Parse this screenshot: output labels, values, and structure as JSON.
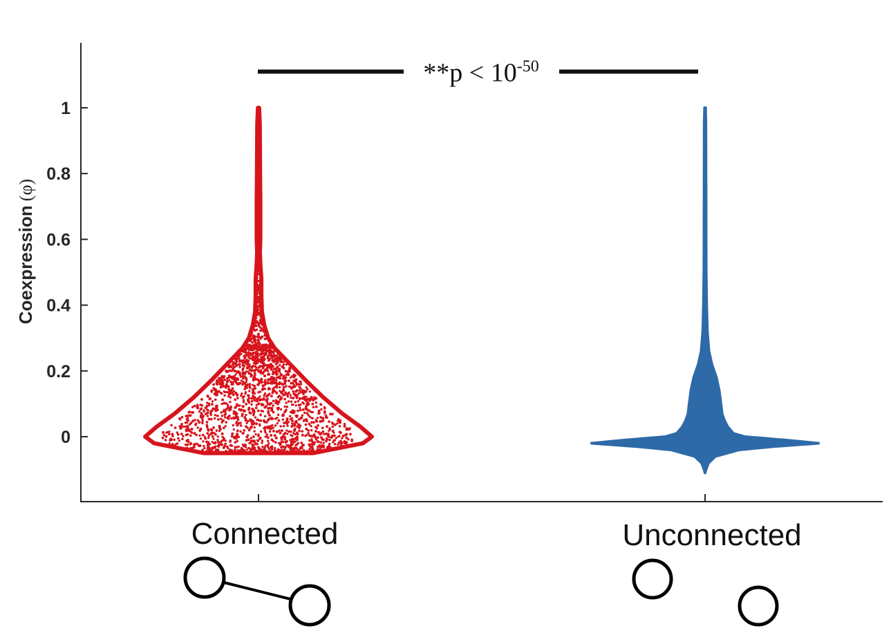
{
  "chart_data": {
    "type": "violin",
    "title": "",
    "xlabel": "",
    "ylabel": "Coexpression",
    "ylabel_symbol": "(φ)",
    "ylim": [
      -0.2,
      1.2
    ],
    "yticks": [
      0,
      0.2,
      0.4,
      0.6,
      0.8,
      1
    ],
    "ytick_labels": [
      "0",
      "0.2",
      "0.4",
      "0.6",
      "0.8",
      "1"
    ],
    "grid": false,
    "legend": "none",
    "categories": [
      "Connected",
      "Unconnected"
    ],
    "series": [
      {
        "category": "Connected",
        "color": "#d7141c",
        "style": "scatter-fill",
        "min": -0.05,
        "max": 1.0,
        "density_profile": [
          {
            "y": -0.05,
            "half_width": 0.48
          },
          {
            "y": -0.02,
            "half_width": 0.92
          },
          {
            "y": 0.0,
            "half_width": 1.0
          },
          {
            "y": 0.03,
            "half_width": 0.9
          },
          {
            "y": 0.07,
            "half_width": 0.74
          },
          {
            "y": 0.12,
            "half_width": 0.57
          },
          {
            "y": 0.17,
            "half_width": 0.42
          },
          {
            "y": 0.22,
            "half_width": 0.28
          },
          {
            "y": 0.27,
            "half_width": 0.14
          },
          {
            "y": 0.3,
            "half_width": 0.085
          },
          {
            "y": 0.34,
            "half_width": 0.05
          },
          {
            "y": 0.38,
            "half_width": 0.03
          },
          {
            "y": 0.43,
            "half_width": 0.025
          },
          {
            "y": 0.48,
            "half_width": 0.025
          },
          {
            "y": 0.52,
            "half_width": 0.017
          },
          {
            "y": 0.56,
            "half_width": 0.012
          },
          {
            "y": 0.6,
            "half_width": 0.016
          },
          {
            "y": 0.66,
            "half_width": 0.016
          },
          {
            "y": 0.72,
            "half_width": 0.016
          },
          {
            "y": 0.78,
            "half_width": 0.014
          },
          {
            "y": 0.84,
            "half_width": 0.013
          },
          {
            "y": 0.9,
            "half_width": 0.012
          },
          {
            "y": 0.95,
            "half_width": 0.011
          },
          {
            "y": 1.0,
            "half_width": 0.005
          }
        ]
      },
      {
        "category": "Unconnected",
        "color": "#2e6aa8",
        "style": "solid",
        "min": -0.11,
        "max": 1.0,
        "density_profile": [
          {
            "y": -0.11,
            "half_width": 0.0
          },
          {
            "y": -0.1,
            "half_width": 0.008
          },
          {
            "y": -0.08,
            "half_width": 0.03
          },
          {
            "y": -0.06,
            "half_width": 0.09
          },
          {
            "y": -0.04,
            "half_width": 0.3
          },
          {
            "y": -0.03,
            "half_width": 0.6
          },
          {
            "y": -0.02,
            "half_width": 1.0
          },
          {
            "y": -0.01,
            "half_width": 0.7
          },
          {
            "y": 0.0,
            "half_width": 0.35
          },
          {
            "y": 0.01,
            "half_width": 0.25
          },
          {
            "y": 0.03,
            "half_width": 0.2
          },
          {
            "y": 0.05,
            "half_width": 0.17
          },
          {
            "y": 0.07,
            "half_width": 0.15
          },
          {
            "y": 0.1,
            "half_width": 0.14
          },
          {
            "y": 0.14,
            "half_width": 0.125
          },
          {
            "y": 0.18,
            "half_width": 0.1
          },
          {
            "y": 0.22,
            "half_width": 0.06
          },
          {
            "y": 0.26,
            "half_width": 0.034
          },
          {
            "y": 0.32,
            "half_width": 0.02
          },
          {
            "y": 0.4,
            "half_width": 0.014
          },
          {
            "y": 0.5,
            "half_width": 0.01
          },
          {
            "y": 0.6,
            "half_width": 0.009
          },
          {
            "y": 0.8,
            "half_width": 0.008
          },
          {
            "y": 0.95,
            "half_width": 0.007
          },
          {
            "y": 1.0,
            "half_width": 0.004
          }
        ]
      }
    ],
    "annotations": [
      {
        "type": "significance-bracket",
        "between": [
          "Connected",
          "Unconnected"
        ],
        "y": 1.11,
        "text": "**p < 10",
        "superscript": "-50"
      }
    ]
  },
  "icons": [
    {
      "category": "Connected",
      "icon": "connected-nodes-icon"
    },
    {
      "category": "Unconnected",
      "icon": "unconnected-nodes-icon"
    }
  ]
}
